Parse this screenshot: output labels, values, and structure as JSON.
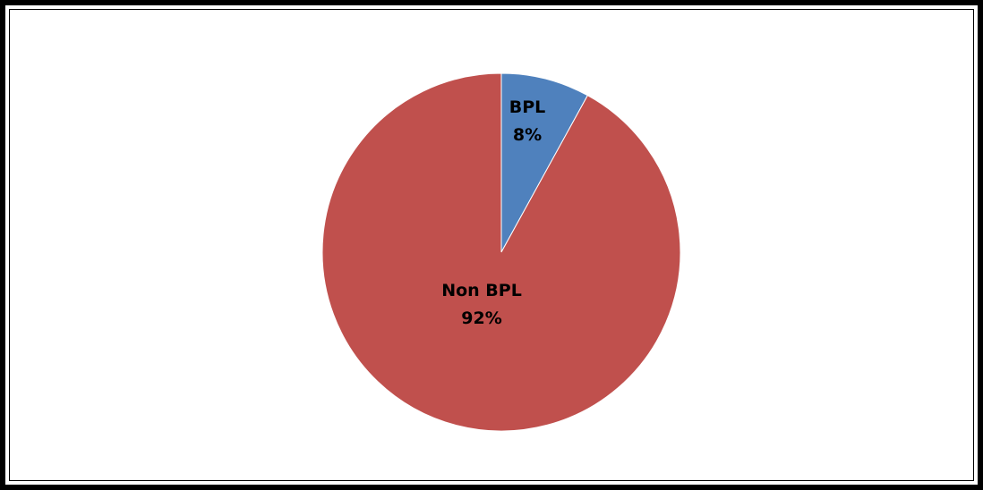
{
  "chart_data": {
    "type": "pie",
    "title": "",
    "legend": "none",
    "slices": [
      {
        "label": "BPL",
        "value": 8,
        "display_percent": "8%",
        "color": "#4F81BD"
      },
      {
        "label": "Non BPL",
        "value": 92,
        "display_percent": "92%",
        "color": "#C0504D"
      }
    ]
  }
}
